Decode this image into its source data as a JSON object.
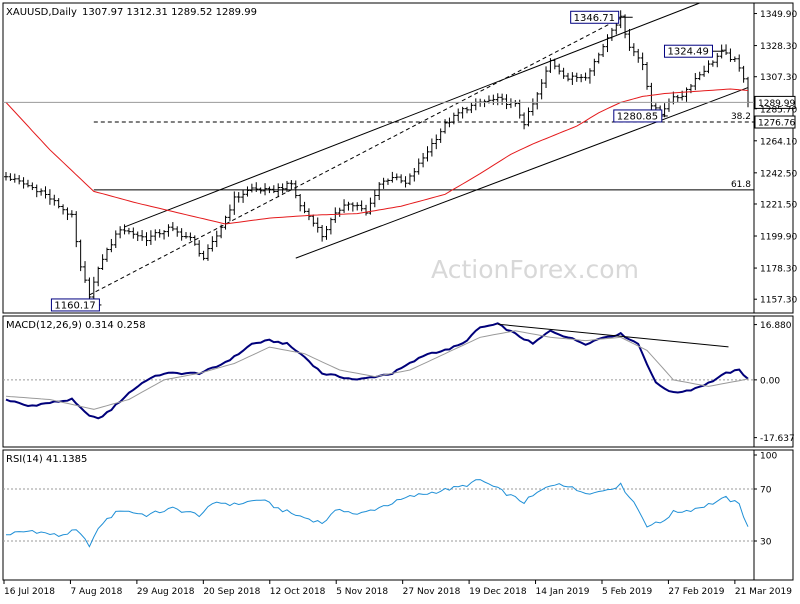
{
  "colors": {
    "frame": "#000000",
    "background": "#ffffff",
    "bar": "#000000",
    "ma": "#e41a1c",
    "macd_line": "#00007a",
    "macd_signal": "#9a9a9a",
    "rsi": "#1f8fd6",
    "watermark": "#d8d8d8",
    "level_box_fill": "#ffffff",
    "level_box_border": "#000080"
  },
  "watermark": "ActionForex.com",
  "main_header": {
    "symbol": "XAUUSD,Daily",
    "ohlc": "1307.97 1312.31 1289.52 1289.99"
  },
  "macd_header": "MACD(12,26,9) 0.314 0.258",
  "rsi_header": "RSI(14) 41.1385",
  "chart_data": [
    {
      "type": "candlestick",
      "title": "XAUUSD,Daily",
      "ylim": [
        1148,
        1357
      ],
      "y_ticks": [
        "1349.90",
        "1328.30",
        "1307.30",
        "1285.70",
        "1264.10",
        "1242.50",
        "1221.50",
        "1199.90",
        "1178.30",
        "1157.30"
      ],
      "x_tick_labels": [
        "16 Jul 2018",
        "7 Aug 2018",
        "29 Aug 2018",
        "20 Sep 2018",
        "12 Oct 2018",
        "5 Nov 2018",
        "27 Nov 2018",
        "19 Dec 2018",
        "14 Jan 2019",
        "5 Feb 2019",
        "27 Feb 2019",
        "21 Mar 2019"
      ],
      "price_path": [
        [
          0,
          1240
        ],
        [
          8,
          1230
        ],
        [
          15,
          1213
        ],
        [
          17,
          1178
        ],
        [
          19,
          1160.17
        ],
        [
          22,
          1185
        ],
        [
          26,
          1205
        ],
        [
          32,
          1198
        ],
        [
          37,
          1205
        ],
        [
          42,
          1198
        ],
        [
          45,
          1185
        ],
        [
          48,
          1200
        ],
        [
          52,
          1225
        ],
        [
          56,
          1232
        ],
        [
          60,
          1230
        ],
        [
          65,
          1235
        ],
        [
          67,
          1220
        ],
        [
          70,
          1210
        ],
        [
          72,
          1200
        ],
        [
          74,
          1210
        ],
        [
          77,
          1222
        ],
        [
          80,
          1220
        ],
        [
          82,
          1215
        ],
        [
          85,
          1235
        ],
        [
          88,
          1240
        ],
        [
          91,
          1235
        ],
        [
          94,
          1248
        ],
        [
          97,
          1262
        ],
        [
          100,
          1275
        ],
        [
          104,
          1285
        ],
        [
          108,
          1290
        ],
        [
          112,
          1292
        ],
        [
          116,
          1288
        ],
        [
          118,
          1276
        ],
        [
          121,
          1295
        ],
        [
          124,
          1318
        ],
        [
          128,
          1306
        ],
        [
          132,
          1308
        ],
        [
          135,
          1322
        ],
        [
          138,
          1340
        ],
        [
          140,
          1346.71
        ],
        [
          142,
          1328
        ],
        [
          145,
          1316
        ],
        [
          147,
          1288
        ],
        [
          149,
          1282
        ],
        [
          151,
          1291
        ],
        [
          154,
          1295
        ],
        [
          157,
          1306
        ],
        [
          160,
          1315
        ],
        [
          163,
          1324
        ],
        [
          166,
          1318
        ],
        [
          168,
          1307
        ],
        [
          169,
          1289.99
        ]
      ],
      "n_bars": 170,
      "last_price": "1289.99",
      "labels": [
        {
          "text": "1346.71",
          "index": 140,
          "value": 1346.71
        },
        {
          "text": "1324.49",
          "index": 160,
          "value": 1324.49
        },
        {
          "text": "1280.85",
          "index": 148,
          "value": 1280.85
        },
        {
          "text": "1160.17",
          "index": 19,
          "value": 1160.17
        }
      ],
      "levels": [
        {
          "name": "38.2",
          "value": 1276.76,
          "label": "1276.76",
          "from_index": 20
        },
        {
          "name": "61.8",
          "value": 1231.0,
          "from_index": 20
        }
      ],
      "moving_average": [
        [
          0,
          1290
        ],
        [
          10,
          1258
        ],
        [
          20,
          1230
        ],
        [
          30,
          1222
        ],
        [
          40,
          1215
        ],
        [
          50,
          1208
        ],
        [
          60,
          1212
        ],
        [
          70,
          1214
        ],
        [
          80,
          1215
        ],
        [
          90,
          1220
        ],
        [
          100,
          1228
        ],
        [
          108,
          1242
        ],
        [
          115,
          1255
        ],
        [
          120,
          1262
        ],
        [
          125,
          1268
        ],
        [
          130,
          1274
        ],
        [
          135,
          1283
        ],
        [
          140,
          1290
        ],
        [
          145,
          1294
        ],
        [
          150,
          1296
        ],
        [
          155,
          1297
        ],
        [
          160,
          1298
        ],
        [
          165,
          1299
        ],
        [
          169,
          1298
        ]
      ],
      "channel": [
        {
          "style": "solid",
          "from": [
            27,
            1206
          ],
          "to": [
            158,
            1357
          ]
        },
        {
          "style": "solid",
          "from": [
            66,
            1185
          ],
          "to": [
            169,
            1300
          ]
        },
        {
          "style": "dashed",
          "from": [
            19,
            1160.17
          ],
          "to": [
            140,
            1346.71
          ]
        }
      ]
    },
    {
      "type": "line",
      "title": "MACD(12,26,9) 0.314 0.258",
      "ylim": [
        -20.5,
        19.5
      ],
      "y_ticks": [
        "16.880",
        "0.00",
        "-17.637"
      ],
      "series": [
        {
          "name": "MACD",
          "role": "macd",
          "values": [
            [
              0,
              -6
            ],
            [
              5,
              -8
            ],
            [
              10,
              -7
            ],
            [
              15,
              -6
            ],
            [
              18,
              -10
            ],
            [
              21,
              -12
            ],
            [
              24,
              -9
            ],
            [
              28,
              -4
            ],
            [
              32,
              0
            ],
            [
              36,
              2
            ],
            [
              40,
              2
            ],
            [
              44,
              2
            ],
            [
              48,
              4
            ],
            [
              52,
              7
            ],
            [
              56,
              11
            ],
            [
              60,
              12
            ],
            [
              64,
              11
            ],
            [
              68,
              7
            ],
            [
              72,
              2
            ],
            [
              76,
              1
            ],
            [
              80,
              0
            ],
            [
              84,
              1
            ],
            [
              88,
              2
            ],
            [
              92,
              5
            ],
            [
              96,
              8
            ],
            [
              100,
              9
            ],
            [
              104,
              11
            ],
            [
              108,
              16
            ],
            [
              112,
              17
            ],
            [
              116,
              14
            ],
            [
              120,
              11
            ],
            [
              124,
              15
            ],
            [
              128,
              13
            ],
            [
              132,
              11
            ],
            [
              136,
              13
            ],
            [
              140,
              14
            ],
            [
              144,
              11
            ],
            [
              148,
              -1
            ],
            [
              152,
              -4
            ],
            [
              156,
              -3
            ],
            [
              160,
              -1
            ],
            [
              164,
              2
            ],
            [
              167,
              3
            ],
            [
              169,
              0.314
            ]
          ]
        },
        {
          "name": "Signal",
          "role": "signal",
          "values": [
            [
              0,
              -5
            ],
            [
              10,
              -6
            ],
            [
              20,
              -9
            ],
            [
              28,
              -6
            ],
            [
              36,
              0
            ],
            [
              44,
              2
            ],
            [
              52,
              5
            ],
            [
              60,
              10
            ],
            [
              68,
              8
            ],
            [
              76,
              3
            ],
            [
              84,
              1
            ],
            [
              92,
              3
            ],
            [
              100,
              8
            ],
            [
              108,
              13
            ],
            [
              116,
              15
            ],
            [
              124,
              13
            ],
            [
              132,
              12
            ],
            [
              140,
              13
            ],
            [
              146,
              9
            ],
            [
              152,
              0
            ],
            [
              160,
              -2
            ],
            [
              169,
              0.258
            ]
          ]
        }
      ],
      "annotations": [
        {
          "type": "trendline",
          "from": [
            112,
            17
          ],
          "to": [
            160,
            11
          ]
        }
      ]
    },
    {
      "type": "line",
      "title": "RSI(14) 41.1385",
      "ylim": [
        0,
        100
      ],
      "y_ticks": [
        "100",
        "70",
        "30"
      ],
      "series": [
        {
          "name": "RSI(14)",
          "values": [
            [
              0,
              35
            ],
            [
              6,
              38
            ],
            [
              12,
              34
            ],
            [
              16,
              38
            ],
            [
              19,
              27
            ],
            [
              22,
              44
            ],
            [
              26,
              54
            ],
            [
              32,
              50
            ],
            [
              38,
              55
            ],
            [
              44,
              50
            ],
            [
              48,
              60
            ],
            [
              52,
              58
            ],
            [
              58,
              62
            ],
            [
              62,
              55
            ],
            [
              66,
              50
            ],
            [
              72,
              44
            ],
            [
              76,
              55
            ],
            [
              80,
              50
            ],
            [
              86,
              57
            ],
            [
              92,
              64
            ],
            [
              98,
              68
            ],
            [
              104,
              72
            ],
            [
              108,
              77
            ],
            [
              112,
              70
            ],
            [
              116,
              63
            ],
            [
              118,
              60
            ],
            [
              122,
              69
            ],
            [
              126,
              75
            ],
            [
              130,
              69
            ],
            [
              134,
              67
            ],
            [
              138,
              71
            ],
            [
              140,
              73
            ],
            [
              143,
              60
            ],
            [
              146,
              42
            ],
            [
              149,
              44
            ],
            [
              152,
              52
            ],
            [
              156,
              54
            ],
            [
              160,
              58
            ],
            [
              164,
              63
            ],
            [
              167,
              58
            ],
            [
              169,
              41
            ]
          ]
        }
      ],
      "levels": [
        70,
        30
      ]
    }
  ]
}
